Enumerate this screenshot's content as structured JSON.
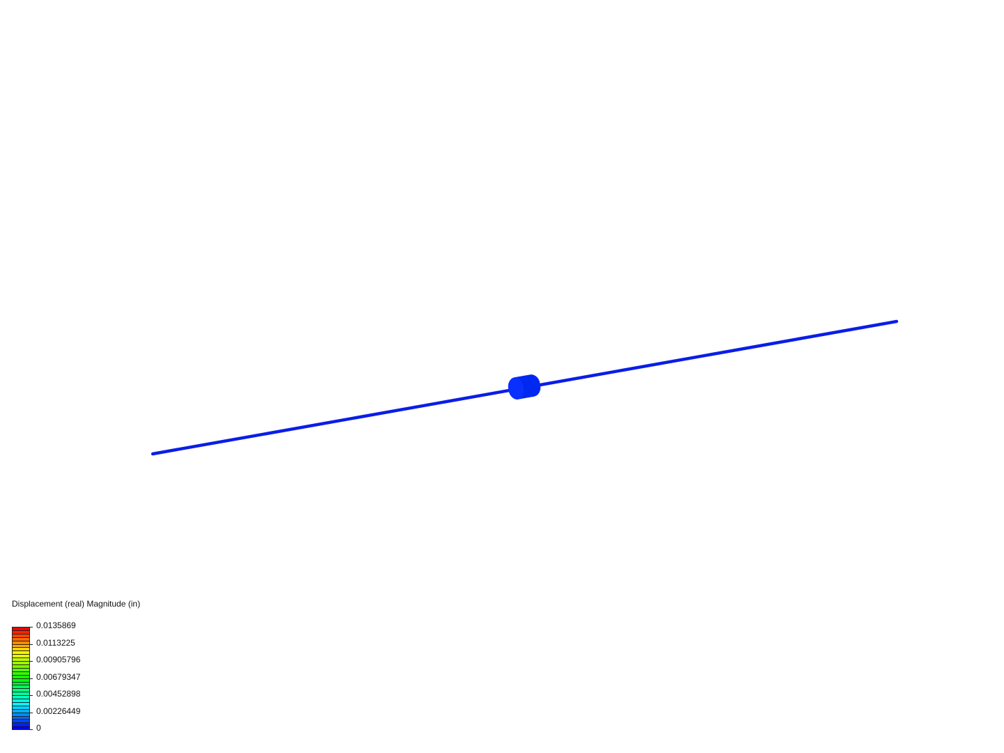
{
  "legend": {
    "title": "Displacement (real) Magnitude (in)",
    "labels": [
      "0.0135869",
      "0.0113225",
      "0.00905796",
      "0.00679347",
      "0.00452898",
      "0.00226449",
      "0"
    ],
    "range": [
      0,
      0.0135869
    ],
    "band_count": 30,
    "colormap": [
      "#ff0000",
      "#ff8000",
      "#ffff00",
      "#00e000",
      "#00ffff",
      "#0000ff"
    ]
  },
  "model": {
    "shaft_color": "#0a1ee6",
    "body_color": "#0028f0"
  }
}
